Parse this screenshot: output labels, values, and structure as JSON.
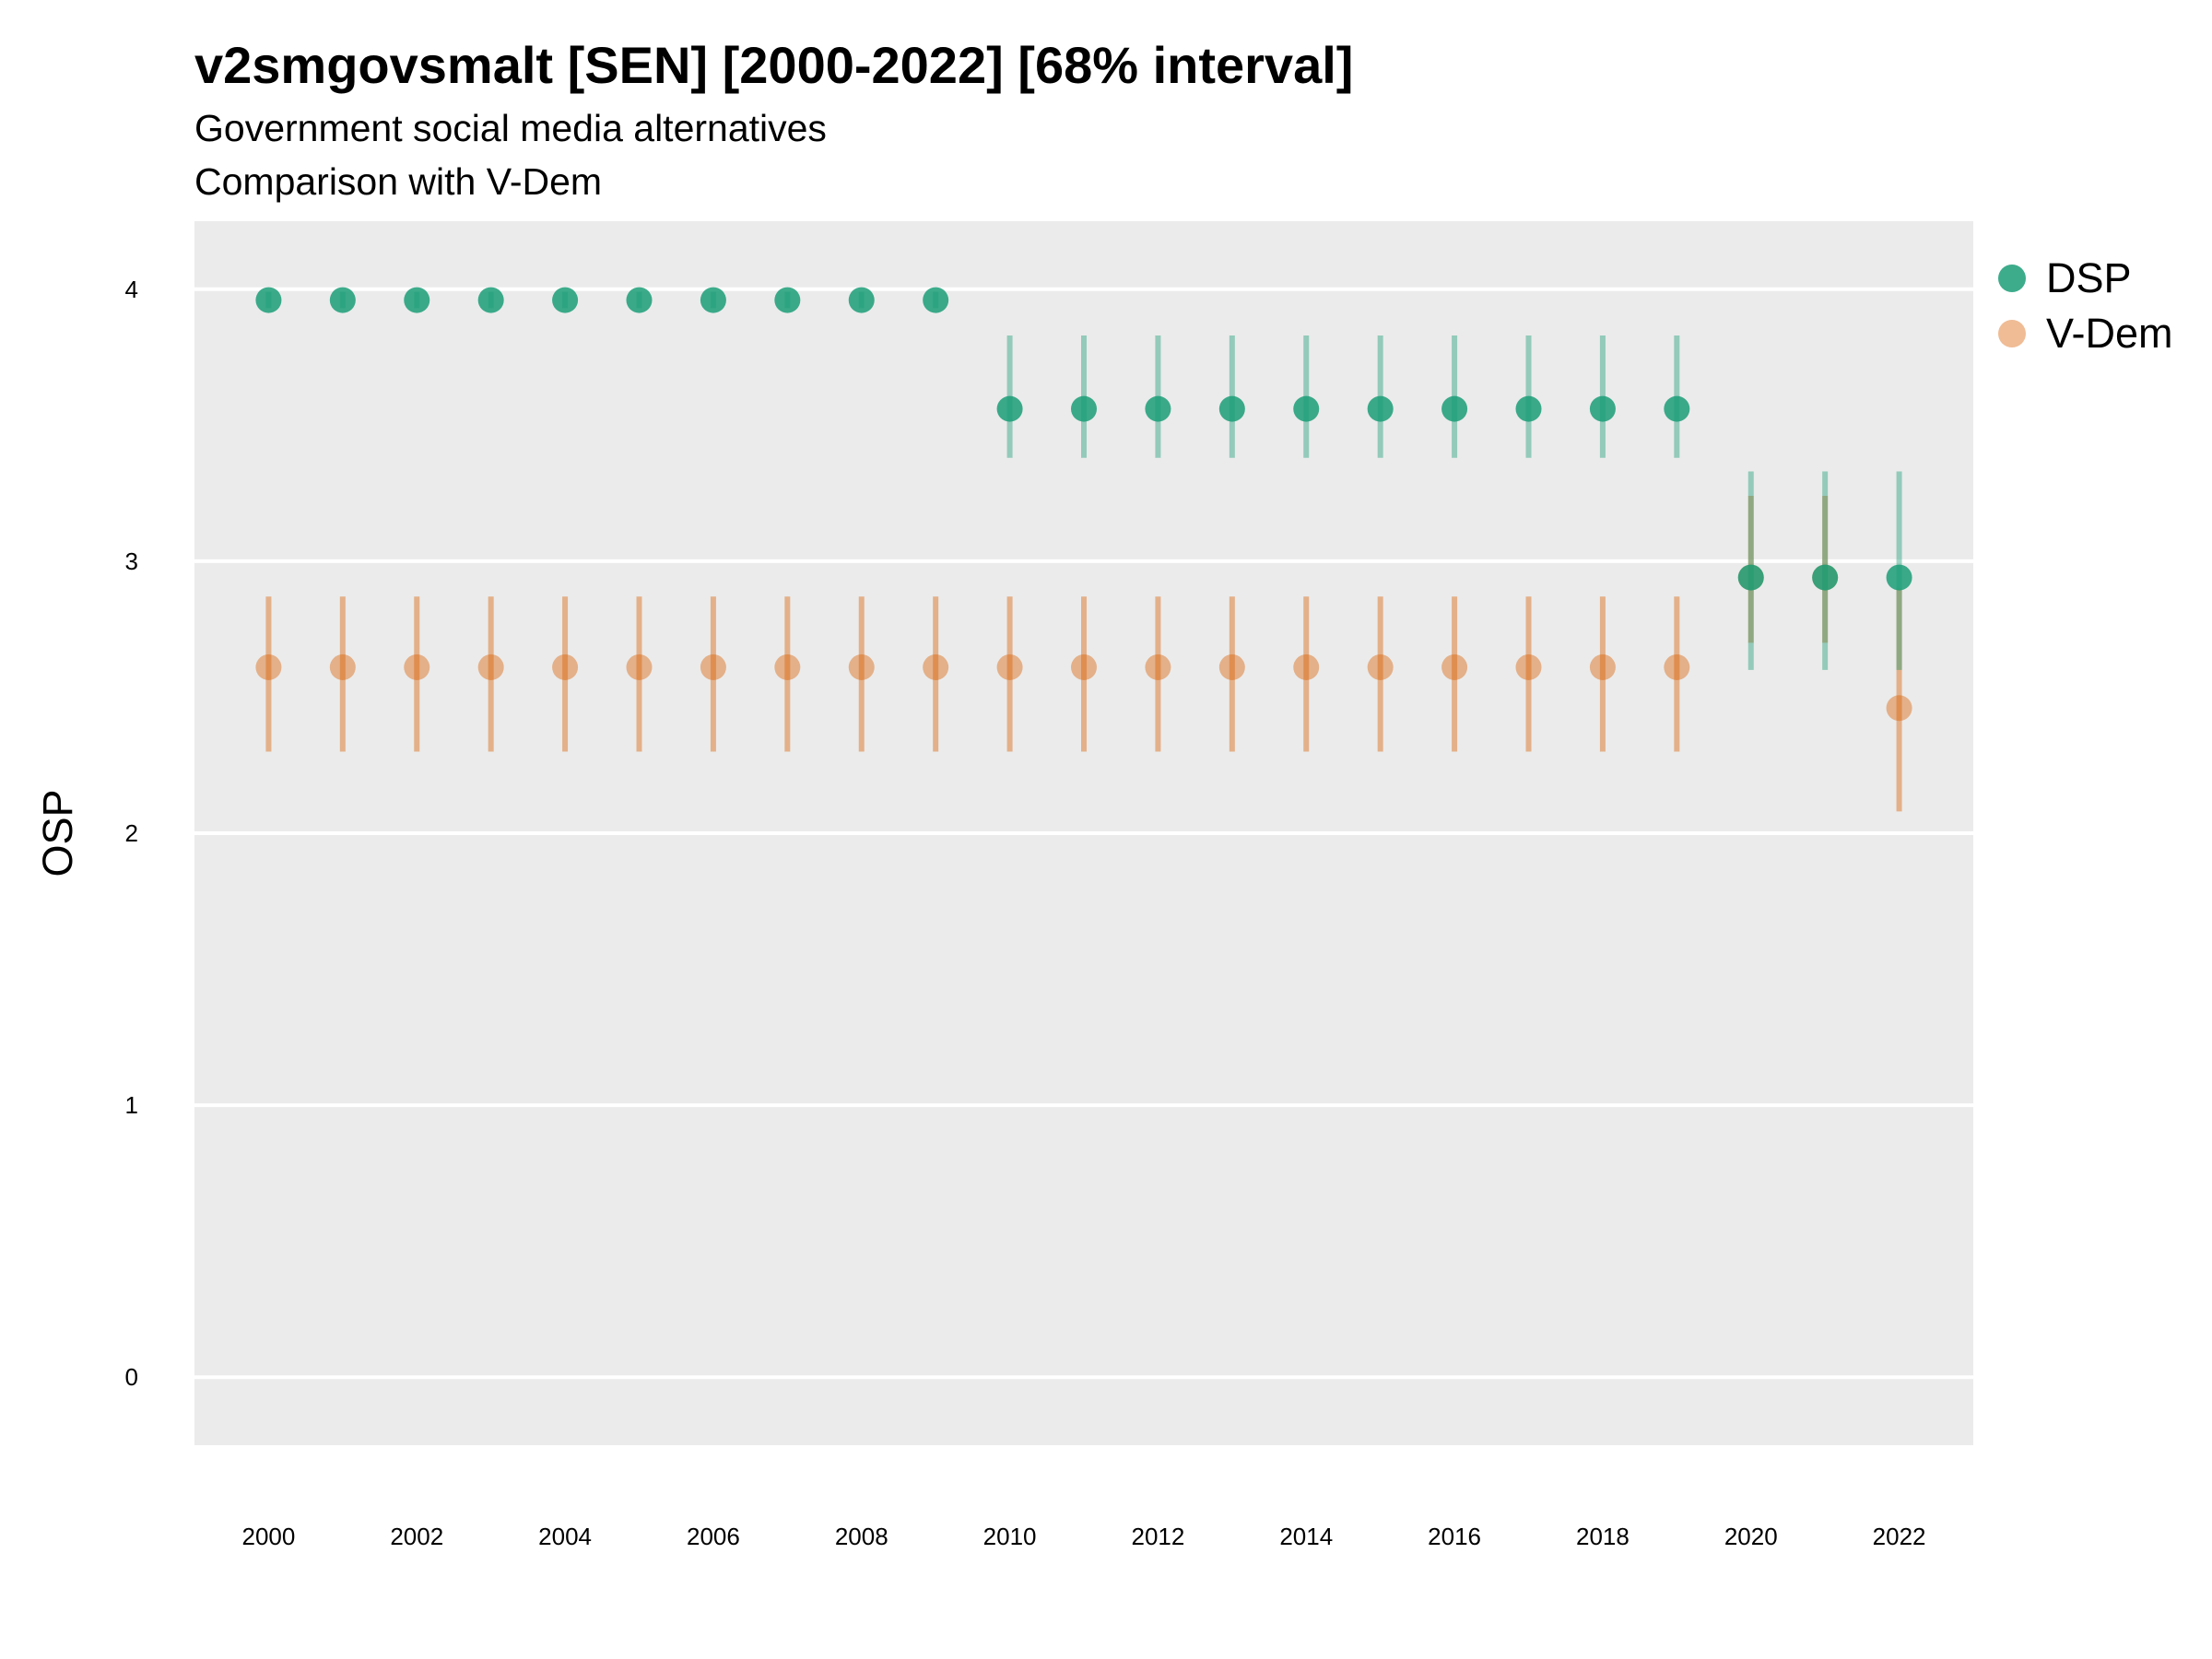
{
  "chart_data": {
    "type": "scatter",
    "title": "v2smgovsmalt [SEN] [2000-2022] [68% interval]",
    "subtitle": "Government social media alternatives",
    "caption": "Comparison with V-Dem",
    "xlabel": "",
    "ylabel": "OSP",
    "x": [
      2000,
      2001,
      2002,
      2003,
      2004,
      2005,
      2006,
      2007,
      2008,
      2009,
      2010,
      2011,
      2012,
      2013,
      2014,
      2015,
      2016,
      2017,
      2018,
      2019,
      2020,
      2021,
      2022
    ],
    "x_ticks": [
      "2000",
      "2002",
      "2004",
      "2006",
      "2008",
      "2010",
      "2012",
      "2014",
      "2016",
      "2018",
      "2020",
      "2022"
    ],
    "y_ticks": [
      "0",
      "1",
      "2",
      "3",
      "4"
    ],
    "xlim": [
      1999.0,
      2023.0
    ],
    "ylim": [
      -0.25,
      4.25
    ],
    "grid": true,
    "legend_position": "right",
    "series": [
      {
        "name": "DSP",
        "color": "#1b9e77",
        "values": [
          3.96,
          3.96,
          3.96,
          3.96,
          3.96,
          3.96,
          3.96,
          3.96,
          3.96,
          3.96,
          3.56,
          3.56,
          3.56,
          3.56,
          3.56,
          3.56,
          3.56,
          3.56,
          3.56,
          3.56,
          2.94,
          2.94,
          2.94
        ],
        "lower": [
          3.93,
          3.93,
          3.93,
          3.93,
          3.93,
          3.93,
          3.93,
          3.93,
          3.93,
          3.93,
          3.38,
          3.38,
          3.38,
          3.38,
          3.38,
          3.38,
          3.38,
          3.38,
          3.38,
          3.38,
          2.6,
          2.6,
          2.6
        ],
        "upper": [
          3.99,
          3.99,
          3.99,
          3.99,
          3.99,
          3.99,
          3.99,
          3.99,
          3.99,
          3.99,
          3.83,
          3.83,
          3.83,
          3.83,
          3.83,
          3.83,
          3.83,
          3.83,
          3.83,
          3.83,
          3.33,
          3.33,
          3.33
        ]
      },
      {
        "name": "V-Dem",
        "color": "#d95f02",
        "values": [
          2.61,
          2.61,
          2.61,
          2.61,
          2.61,
          2.61,
          2.61,
          2.61,
          2.61,
          2.61,
          2.61,
          2.61,
          2.61,
          2.61,
          2.61,
          2.61,
          2.61,
          2.61,
          2.61,
          2.61,
          2.94,
          2.94,
          2.46
        ],
        "lower": [
          2.3,
          2.3,
          2.3,
          2.3,
          2.3,
          2.3,
          2.3,
          2.3,
          2.3,
          2.3,
          2.3,
          2.3,
          2.3,
          2.3,
          2.3,
          2.3,
          2.3,
          2.3,
          2.3,
          2.3,
          2.7,
          2.7,
          2.08
        ],
        "upper": [
          2.87,
          2.87,
          2.87,
          2.87,
          2.87,
          2.87,
          2.87,
          2.87,
          2.87,
          2.87,
          2.87,
          2.87,
          2.87,
          2.87,
          2.87,
          2.87,
          2.87,
          2.87,
          2.87,
          2.87,
          3.24,
          3.24,
          2.9
        ]
      }
    ]
  }
}
